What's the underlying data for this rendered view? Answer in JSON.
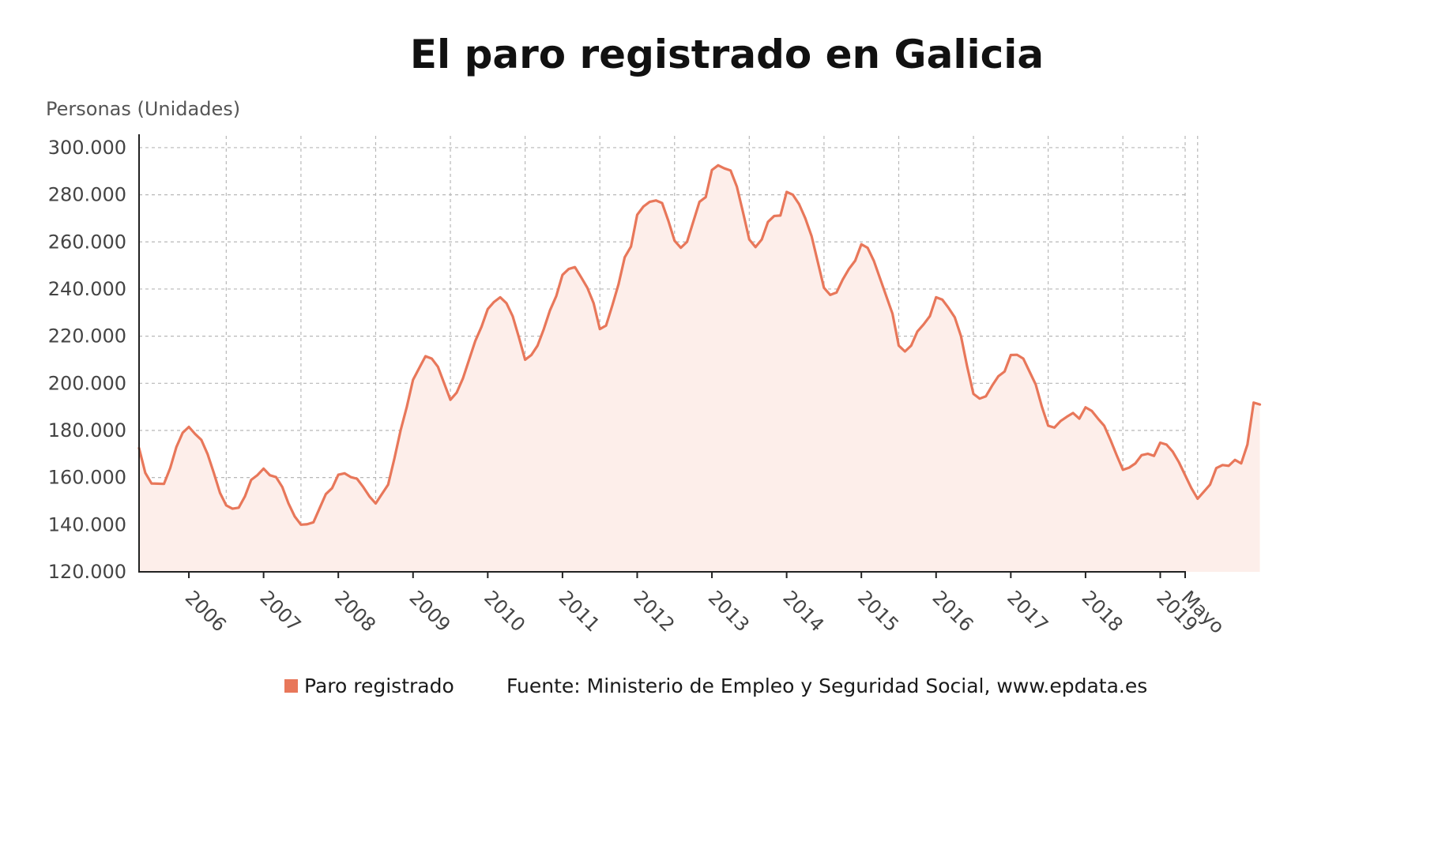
{
  "chart_data": {
    "type": "area",
    "title": "El paro registrado en Galicia",
    "unit_label": "Personas (Unidades)",
    "ylim": [
      120000,
      305000
    ],
    "y_ticks": [
      {
        "value": 120000,
        "label": "120.000"
      },
      {
        "value": 140000,
        "label": "140.000"
      },
      {
        "value": 160000,
        "label": "160.000"
      },
      {
        "value": 180000,
        "label": "180.000"
      },
      {
        "value": 200000,
        "label": "200.000"
      },
      {
        "value": 220000,
        "label": "220.000"
      },
      {
        "value": 240000,
        "label": "240.000"
      },
      {
        "value": 260000,
        "label": "260.000"
      },
      {
        "value": 280000,
        "label": "280.000"
      },
      {
        "value": 300000,
        "label": "300.000"
      }
    ],
    "x_ticks": [
      "2006",
      "2007",
      "2008",
      "2009",
      "2010",
      "2011",
      "2012",
      "2013",
      "2014",
      "2015",
      "2016",
      "2017",
      "2018",
      "2019",
      "Mayo"
    ],
    "grid": true,
    "series": [
      {
        "name": "Paro registrado",
        "color": "#e8775a",
        "fill": "#fdeeea",
        "start": "2005-05",
        "end": "2019-05",
        "values": [
          172500,
          162000,
          157500,
          157400,
          157300,
          164000,
          173000,
          179000,
          181500,
          178500,
          176000,
          170000,
          162000,
          153500,
          148200,
          146800,
          147200,
          152000,
          159000,
          161000,
          163800,
          161000,
          160200,
          156000,
          149000,
          143500,
          140000,
          140200,
          141000,
          147000,
          153000,
          155500,
          161200,
          161800,
          160200,
          159500,
          156000,
          152000,
          149000,
          153000,
          157000,
          168000,
          180000,
          190000,
          201500,
          206500,
          211500,
          210500,
          207000,
          200000,
          193000,
          196000,
          202000,
          210000,
          218000,
          224000,
          231500,
          234500,
          236500,
          234000,
          228500,
          219500,
          210000,
          212000,
          216000,
          223000,
          231000,
          237000,
          246000,
          248500,
          249300,
          245000,
          240500,
          234000,
          223000,
          224500,
          233000,
          242000,
          253500,
          258000,
          271500,
          275000,
          277000,
          277600,
          276500,
          269000,
          260500,
          257500,
          260000,
          268500,
          277000,
          279000,
          290500,
          292500,
          291200,
          290300,
          283500,
          272500,
          261000,
          257800,
          261000,
          268500,
          271000,
          271200,
          281200,
          280000,
          276000,
          270000,
          262500,
          251500,
          240500,
          237500,
          238500,
          244000,
          248500,
          252000,
          259000,
          257500,
          252000,
          244500,
          237000,
          229500,
          216000,
          213500,
          216000,
          222000,
          225000,
          228500,
          236500,
          235500,
          232000,
          228000,
          220000,
          207000,
          195500,
          193500,
          194500,
          199000,
          203000,
          205000,
          212000,
          212100,
          210500,
          205000,
          199500,
          190000,
          182000,
          181200,
          184000,
          185800,
          187400,
          185000,
          189800,
          188300,
          185000,
          182000,
          176000,
          169500,
          163300,
          164200,
          166000,
          169500,
          170100,
          169200,
          174800,
          174000,
          171000,
          166500,
          161000,
          155500,
          151000,
          154000,
          157000,
          164000,
          165300,
          165000,
          167500,
          166000,
          174000,
          191800,
          191000
        ]
      }
    ]
  },
  "legend": {
    "series_label": "Paro registrado",
    "source": "Fuente: Ministerio de Empleo y Seguridad Social, www.epdata.es"
  }
}
